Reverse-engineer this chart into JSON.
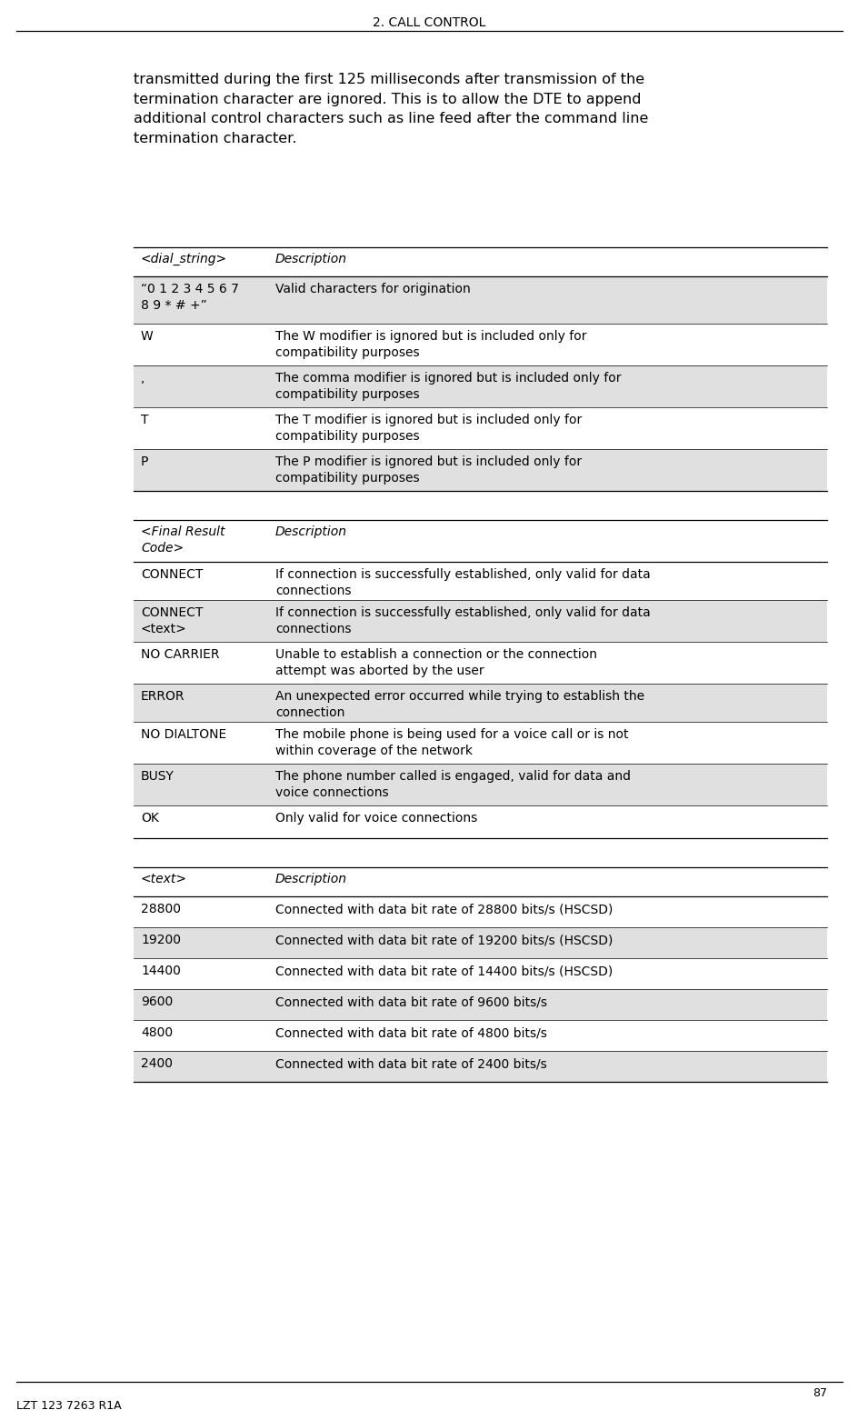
{
  "page_title": "2. CALL CONTROL",
  "page_number": "87",
  "footer_left": "LZT 123 7263 R1A",
  "intro_text": "transmitted during the first 125 milliseconds after transmission of the\ntermination character are ignored. This is to allow the DTE to append\nadditional control characters such as line feed after the command line\ntermination character.",
  "table1_header": [
    "<dial_string>",
    "Description"
  ],
  "table1_rows": [
    {
      "key": "“0 1 2 3 4 5 6 7\n8 9 * # +”",
      "desc": "Valid characters for origination",
      "shaded": true
    },
    {
      "key": "W",
      "desc": "The W modifier is ignored but is included only for\ncompatibility purposes",
      "shaded": false
    },
    {
      "key": ",",
      "desc": "The comma modifier is ignored but is included only for\ncompatibility purposes",
      "shaded": true
    },
    {
      "key": "T",
      "desc": "The T modifier is ignored but is included only for\ncompatibility purposes",
      "shaded": false
    },
    {
      "key": "P",
      "desc": "The P modifier is ignored but is included only for\ncompatibility purposes",
      "shaded": true
    }
  ],
  "table2_header": [
    "<Final Result\nCode>",
    "Description"
  ],
  "table2_rows": [
    {
      "key": "CONNECT",
      "desc": "If connection is successfully established, only valid for data\nconnections",
      "shaded": false
    },
    {
      "key": "CONNECT\n<text>",
      "desc": "If connection is successfully established, only valid for data\nconnections",
      "shaded": true
    },
    {
      "key": "NO CARRIER",
      "desc": "Unable to establish a connection or the connection\nattempt was aborted by the user",
      "shaded": false
    },
    {
      "key": "ERROR",
      "desc": "An unexpected error occurred while trying to establish the\nconnection",
      "shaded": true
    },
    {
      "key": "NO DIALTONE",
      "desc": "The mobile phone is being used for a voice call or is not\nwithin coverage of the network",
      "shaded": false
    },
    {
      "key": "BUSY",
      "desc": "The phone number called is engaged, valid for data and\nvoice connections",
      "shaded": true
    },
    {
      "key": "OK",
      "desc": "Only valid for voice connections",
      "shaded": false
    }
  ],
  "table3_header": [
    "<text>",
    "Description"
  ],
  "table3_rows": [
    {
      "key": "28800",
      "desc": "Connected with data bit rate of 28800 bits/s (HSCSD)",
      "shaded": false
    },
    {
      "key": "19200",
      "desc": "Connected with data bit rate of 19200 bits/s (HSCSD)",
      "shaded": true
    },
    {
      "key": "14400",
      "desc": "Connected with data bit rate of 14400 bits/s (HSCSD)",
      "shaded": false
    },
    {
      "key": "9600",
      "desc": "Connected with data bit rate of 9600 bits/s",
      "shaded": true
    },
    {
      "key": "4800",
      "desc": "Connected with data bit rate of 4800 bits/s",
      "shaded": false
    },
    {
      "key": "2400",
      "desc": "Connected with data bit rate of 2400 bits/s",
      "shaded": true
    }
  ],
  "bg_color": "#ffffff",
  "shaded_color": "#e0e0e0",
  "text_color": "#000000",
  "title_color": "#000000",
  "pw": 945,
  "ph": 1562,
  "lm": 147,
  "rm": 910,
  "col_split": 295,
  "font_size_title": 10,
  "font_size_body": 11.5,
  "font_size_table_header": 10,
  "font_size_table_body": 10,
  "font_size_footer": 9
}
